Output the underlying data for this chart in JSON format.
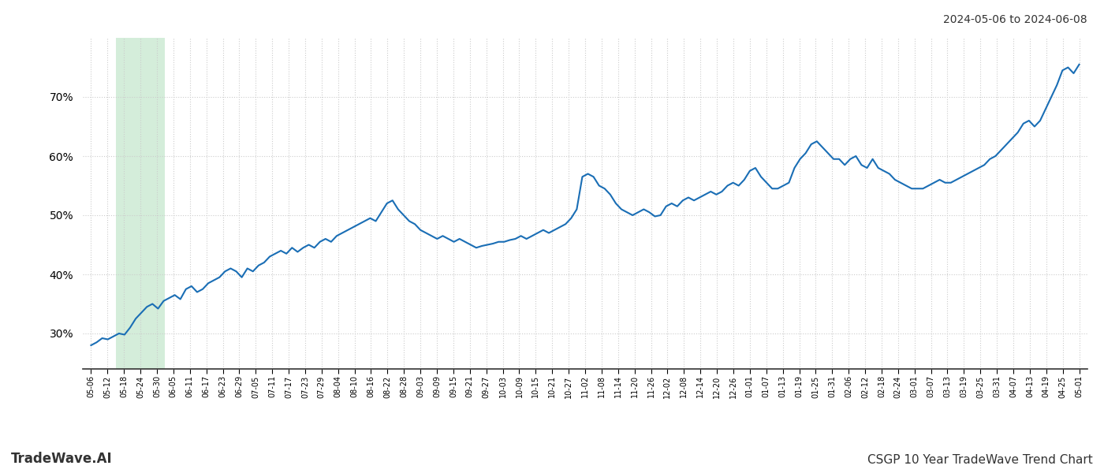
{
  "title_top_right": "2024-05-06 to 2024-06-08",
  "title_bottom_left": "TradeWave.AI",
  "title_bottom_right": "CSGP 10 Year TradeWave Trend Chart",
  "background_color": "#ffffff",
  "line_color": "#1a6eb5",
  "line_width": 1.5,
  "highlight_color": "#d4edda",
  "ylim": [
    24,
    80
  ],
  "yticks": [
    30,
    40,
    50,
    60,
    70
  ],
  "grid_color": "#cccccc",
  "x_labels": [
    "05-06",
    "05-12",
    "05-18",
    "05-24",
    "05-30",
    "06-05",
    "06-11",
    "06-17",
    "06-23",
    "06-29",
    "07-05",
    "07-11",
    "07-17",
    "07-23",
    "07-29",
    "08-04",
    "08-10",
    "08-16",
    "08-22",
    "08-28",
    "09-03",
    "09-09",
    "09-15",
    "09-21",
    "09-27",
    "10-03",
    "10-09",
    "10-15",
    "10-21",
    "10-27",
    "11-02",
    "11-08",
    "11-14",
    "11-20",
    "11-26",
    "12-02",
    "12-08",
    "12-14",
    "12-20",
    "12-26",
    "01-01",
    "01-07",
    "01-13",
    "01-19",
    "01-25",
    "01-31",
    "02-06",
    "02-12",
    "02-18",
    "02-24",
    "03-01",
    "03-07",
    "03-13",
    "03-19",
    "03-25",
    "03-31",
    "04-07",
    "04-13",
    "04-19",
    "04-25",
    "05-01"
  ],
  "values": [
    28.0,
    28.5,
    29.2,
    29.0,
    29.5,
    30.0,
    29.8,
    31.0,
    32.5,
    33.5,
    34.5,
    35.0,
    34.2,
    35.5,
    36.0,
    36.5,
    35.8,
    37.5,
    38.0,
    37.0,
    37.5,
    38.5,
    39.0,
    39.5,
    40.5,
    41.0,
    40.5,
    39.5,
    41.0,
    40.5,
    41.5,
    42.0,
    43.0,
    43.5,
    44.0,
    43.5,
    44.5,
    43.8,
    44.5,
    45.0,
    44.5,
    45.5,
    46.0,
    45.5,
    46.5,
    47.0,
    47.5,
    48.0,
    48.5,
    49.0,
    49.5,
    49.0,
    50.5,
    52.0,
    52.5,
    51.0,
    50.0,
    49.0,
    48.5,
    47.5,
    47.0,
    46.5,
    46.0,
    46.5,
    46.0,
    45.5,
    46.0,
    45.5,
    45.0,
    44.5,
    44.8,
    45.0,
    45.2,
    45.5,
    45.5,
    45.8,
    46.0,
    46.5,
    46.0,
    46.5,
    47.0,
    47.5,
    47.0,
    47.5,
    48.0,
    48.5,
    49.5,
    51.0,
    56.5,
    57.0,
    56.5,
    55.0,
    54.5,
    53.5,
    52.0,
    51.0,
    50.5,
    50.0,
    50.5,
    51.0,
    50.5,
    49.8,
    50.0,
    51.5,
    52.0,
    51.5,
    52.5,
    53.0,
    52.5,
    53.0,
    53.5,
    54.0,
    53.5,
    54.0,
    55.0,
    55.5,
    55.0,
    56.0,
    57.5,
    58.0,
    56.5,
    55.5,
    54.5,
    54.5,
    55.0,
    55.5,
    58.0,
    59.5,
    60.5,
    62.0,
    62.5,
    61.5,
    60.5,
    59.5,
    59.5,
    58.5,
    59.5,
    60.0,
    58.5,
    58.0,
    59.5,
    58.0,
    57.5,
    57.0,
    56.0,
    55.5,
    55.0,
    54.5,
    54.5,
    54.5,
    55.0,
    55.5,
    56.0,
    55.5,
    55.5,
    56.0,
    56.5,
    57.0,
    57.5,
    58.0,
    58.5,
    59.5,
    60.0,
    61.0,
    62.0,
    63.0,
    64.0,
    65.5,
    66.0,
    65.0,
    66.0,
    68.0,
    70.0,
    72.0,
    74.5,
    75.0,
    74.0,
    75.5
  ],
  "highlight_label_start": "05-18",
  "highlight_label_end": "05-30"
}
